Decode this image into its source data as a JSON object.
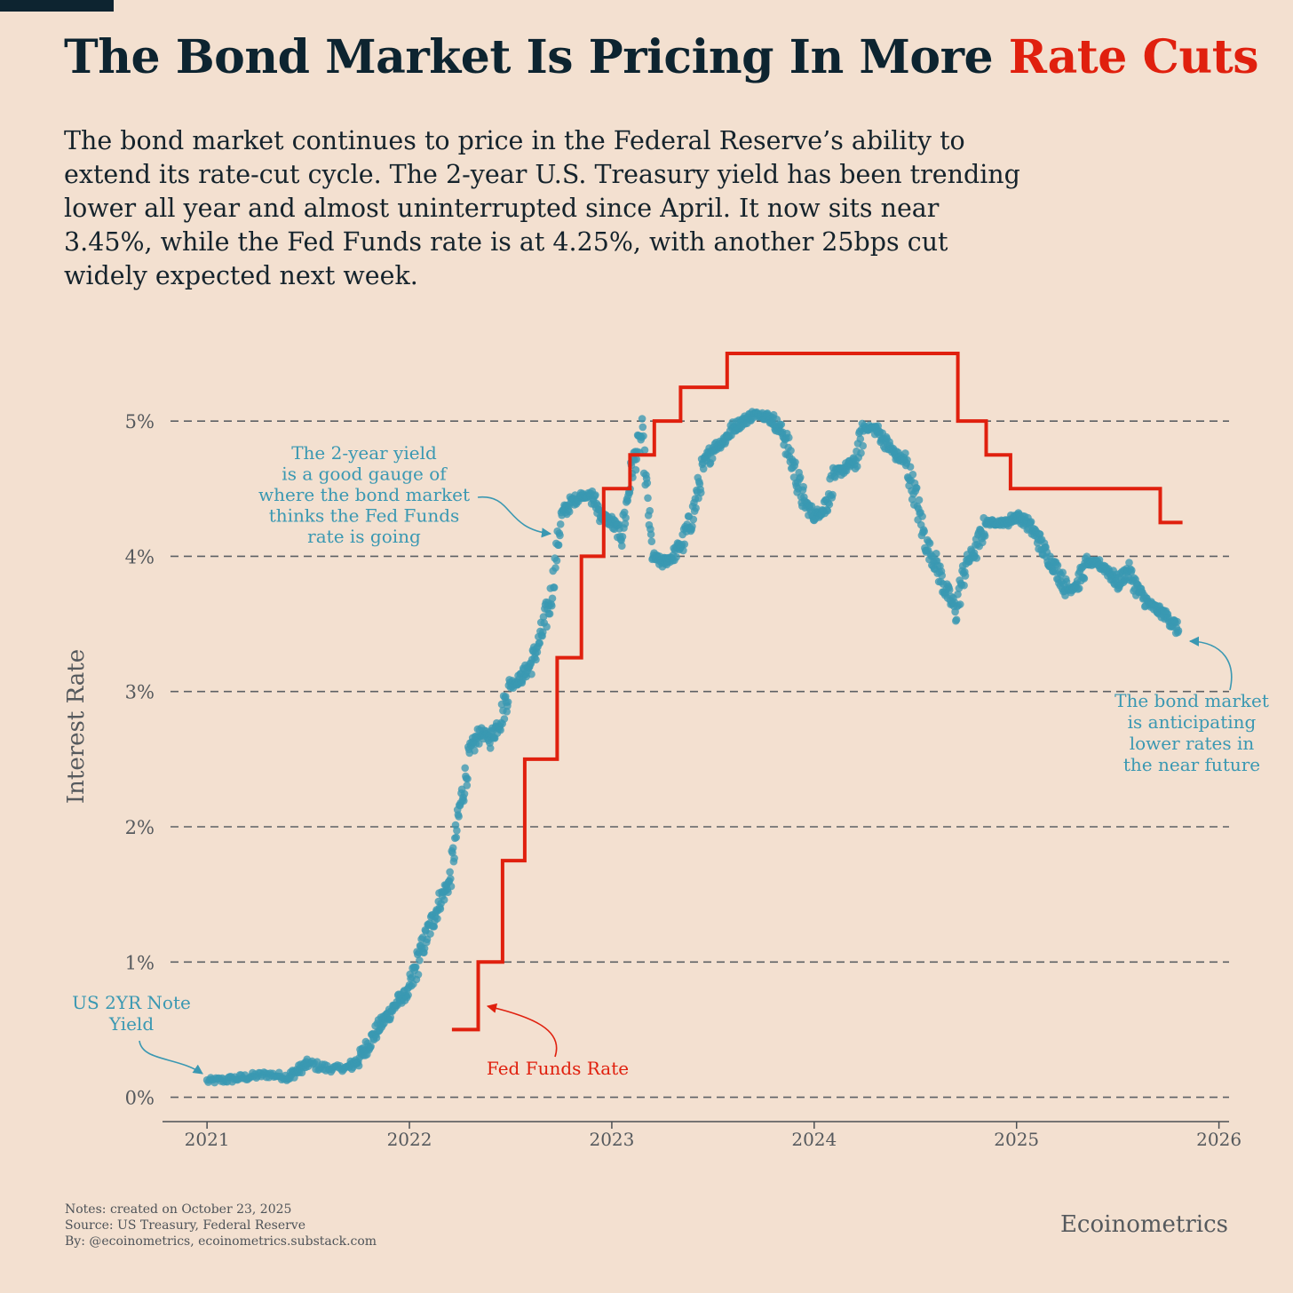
{
  "header": {
    "title_main": "The Bond Market Is Pricing In More ",
    "title_accent": "Rate Cuts",
    "subtitle": "The bond market continues to price in the Federal Reserve’s ability to extend its rate-cut cycle. The 2-year U.S. Treasury yield has been trending lower all year and almost uninterrupted since April. It now sits near 3.45%, while the Fed Funds rate is at 4.25%, with another 25bps cut widely expected next week."
  },
  "colors": {
    "background": "#f3e0d0",
    "title": "#0d2430",
    "accent_red": "#e0200e",
    "yield_teal": "#3a98b2",
    "grid": "#5d6064",
    "axis_text": "#55595d"
  },
  "chart_data": {
    "type": "scatter+step",
    "ylabel": "Interest Rate",
    "xlabel": "",
    "xlim": [
      2020.78,
      2026.05
    ],
    "ylim": [
      -0.18,
      5.5
    ],
    "x_ticks": [
      2021,
      2022,
      2023,
      2024,
      2025,
      2026
    ],
    "x_tick_labels": [
      "2021",
      "2022",
      "2023",
      "2024",
      "2025",
      "2026"
    ],
    "y_ticks": [
      0,
      1,
      2,
      3,
      4,
      5
    ],
    "y_tick_labels": [
      "0%",
      "1%",
      "2%",
      "3%",
      "4%",
      "5%"
    ],
    "grid": "horizontal dashed",
    "series": [
      {
        "name": "US 2YR Note Yield",
        "kind": "scatter",
        "color": "#3a98b2",
        "keypoints": [
          [
            2021.0,
            0.12
          ],
          [
            2021.1,
            0.13
          ],
          [
            2021.2,
            0.15
          ],
          [
            2021.3,
            0.17
          ],
          [
            2021.4,
            0.15
          ],
          [
            2021.45,
            0.2
          ],
          [
            2021.5,
            0.25
          ],
          [
            2021.6,
            0.21
          ],
          [
            2021.7,
            0.22
          ],
          [
            2021.75,
            0.28
          ],
          [
            2021.8,
            0.4
          ],
          [
            2021.85,
            0.52
          ],
          [
            2021.9,
            0.62
          ],
          [
            2021.95,
            0.72
          ],
          [
            2022.0,
            0.78
          ],
          [
            2022.05,
            1.05
          ],
          [
            2022.1,
            1.25
          ],
          [
            2022.15,
            1.45
          ],
          [
            2022.2,
            1.6
          ],
          [
            2022.25,
            2.15
          ],
          [
            2022.3,
            2.55
          ],
          [
            2022.35,
            2.7
          ],
          [
            2022.4,
            2.65
          ],
          [
            2022.45,
            2.8
          ],
          [
            2022.5,
            3.05
          ],
          [
            2022.55,
            3.1
          ],
          [
            2022.6,
            3.2
          ],
          [
            2022.65,
            3.4
          ],
          [
            2022.7,
            3.7
          ],
          [
            2022.75,
            4.3
          ],
          [
            2022.8,
            4.4
          ],
          [
            2022.85,
            4.45
          ],
          [
            2022.9,
            4.45
          ],
          [
            2022.95,
            4.3
          ],
          [
            2023.0,
            4.25
          ],
          [
            2023.05,
            4.15
          ],
          [
            2023.1,
            4.65
          ],
          [
            2023.15,
            4.9
          ],
          [
            2023.2,
            4.0
          ],
          [
            2023.25,
            3.95
          ],
          [
            2023.3,
            4.0
          ],
          [
            2023.35,
            4.1
          ],
          [
            2023.4,
            4.3
          ],
          [
            2023.45,
            4.65
          ],
          [
            2023.5,
            4.8
          ],
          [
            2023.55,
            4.85
          ],
          [
            2023.6,
            4.95
          ],
          [
            2023.65,
            5.0
          ],
          [
            2023.7,
            5.05
          ],
          [
            2023.75,
            5.05
          ],
          [
            2023.8,
            5.0
          ],
          [
            2023.85,
            4.9
          ],
          [
            2023.9,
            4.65
          ],
          [
            2023.95,
            4.4
          ],
          [
            2024.0,
            4.3
          ],
          [
            2024.05,
            4.35
          ],
          [
            2024.1,
            4.6
          ],
          [
            2024.15,
            4.65
          ],
          [
            2024.2,
            4.7
          ],
          [
            2024.25,
            4.95
          ],
          [
            2024.3,
            4.95
          ],
          [
            2024.35,
            4.85
          ],
          [
            2024.4,
            4.75
          ],
          [
            2024.45,
            4.7
          ],
          [
            2024.5,
            4.45
          ],
          [
            2024.55,
            4.1
          ],
          [
            2024.6,
            3.95
          ],
          [
            2024.65,
            3.75
          ],
          [
            2024.7,
            3.6
          ],
          [
            2024.75,
            3.95
          ],
          [
            2024.8,
            4.05
          ],
          [
            2024.85,
            4.25
          ],
          [
            2024.9,
            4.25
          ],
          [
            2024.95,
            4.25
          ],
          [
            2025.0,
            4.3
          ],
          [
            2025.05,
            4.25
          ],
          [
            2025.1,
            4.15
          ],
          [
            2025.15,
            4.0
          ],
          [
            2025.2,
            3.9
          ],
          [
            2025.25,
            3.75
          ],
          [
            2025.3,
            3.8
          ],
          [
            2025.35,
            3.95
          ],
          [
            2025.4,
            3.95
          ],
          [
            2025.45,
            3.9
          ],
          [
            2025.5,
            3.8
          ],
          [
            2025.55,
            3.9
          ],
          [
            2025.6,
            3.75
          ],
          [
            2025.65,
            3.65
          ],
          [
            2025.7,
            3.6
          ],
          [
            2025.75,
            3.55
          ],
          [
            2025.8,
            3.45
          ]
        ]
      },
      {
        "name": "Fed Funds Rate",
        "kind": "step",
        "color": "#e0200e",
        "steps": [
          [
            2022.21,
            0.5
          ],
          [
            2022.34,
            1.0
          ],
          [
            2022.46,
            1.75
          ],
          [
            2022.57,
            2.5
          ],
          [
            2022.73,
            3.25
          ],
          [
            2022.85,
            4.0
          ],
          [
            2022.96,
            4.5
          ],
          [
            2023.09,
            4.75
          ],
          [
            2023.21,
            5.0
          ],
          [
            2023.34,
            5.25
          ],
          [
            2023.57,
            5.5
          ],
          [
            2024.71,
            5.0
          ],
          [
            2024.85,
            4.75
          ],
          [
            2024.97,
            4.5
          ],
          [
            2025.71,
            4.25
          ],
          [
            2025.82,
            4.25
          ]
        ]
      }
    ],
    "annotations": [
      {
        "key": "yield_label",
        "lines": [
          "US 2YR Note",
          "Yield"
        ],
        "color": "#3a98b2"
      },
      {
        "key": "gauge_note",
        "lines": [
          "The 2-year yield",
          "is a good gauge of",
          "where the bond market",
          "thinks the Fed Funds",
          "rate is going"
        ],
        "color": "#3a98b2"
      },
      {
        "key": "future_note",
        "lines": [
          "The bond market",
          "is anticipating",
          "lower rates in",
          "the near future"
        ],
        "color": "#3a98b2"
      },
      {
        "key": "fed_label",
        "lines": [
          "Fed  Funds Rate"
        ],
        "color": "#e0200e"
      }
    ]
  },
  "footer": {
    "notes": [
      "Notes: created on October 23, 2025",
      "Source: US Treasury, Federal Reserve",
      "By: @ecoinometrics, ecoinometrics.substack.com"
    ],
    "brand": "Ecoinometrics"
  }
}
